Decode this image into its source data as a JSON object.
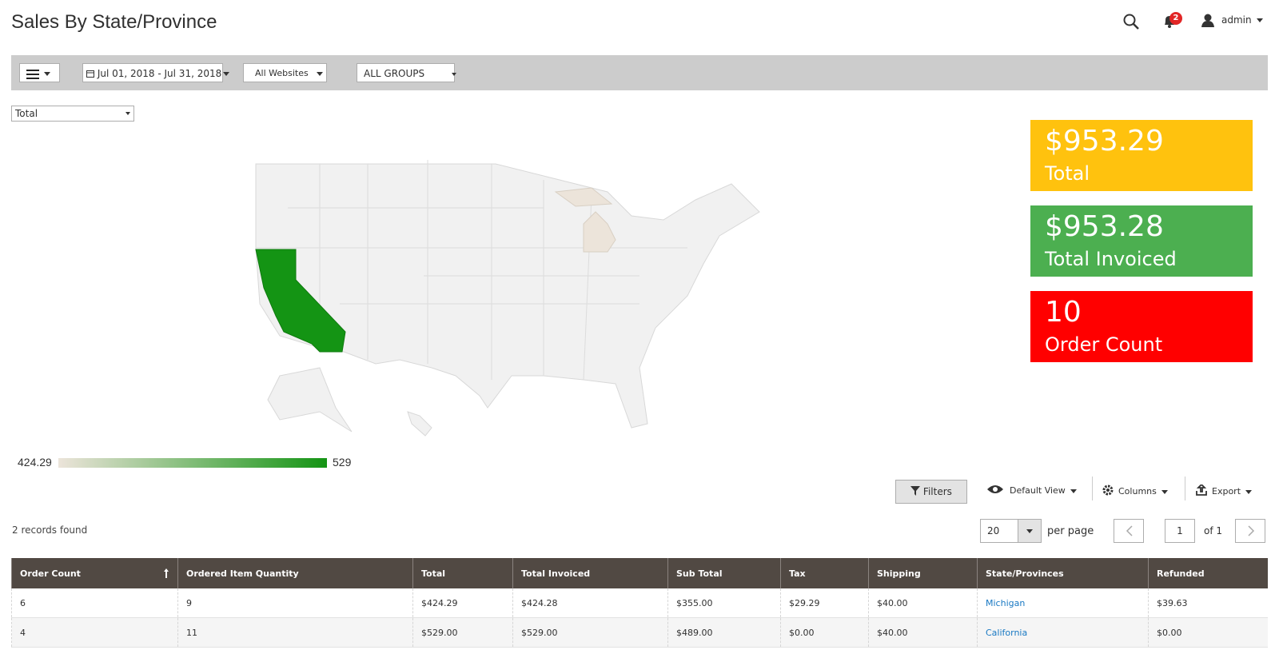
{
  "header": {
    "title": "Sales By State/Province",
    "notifications": "2",
    "user": "admin"
  },
  "toolbar": {
    "date_range": "Jul 01, 2018 - Jul 31, 2018",
    "website": "All Websites",
    "group": "ALL GROUPS"
  },
  "metric_select": "Total",
  "map_legend": {
    "min": "424.29",
    "max": "529"
  },
  "cards": [
    {
      "value": "$953.29",
      "label": "Total"
    },
    {
      "value": "$953.28",
      "label": "Total Invoiced"
    },
    {
      "value": "10",
      "label": "Order Count"
    }
  ],
  "grid_controls": {
    "filters": "Filters",
    "view": "Default View",
    "columns": "Columns",
    "export": "Export",
    "records": "2 records found",
    "page_size": "20",
    "per_page": "per page",
    "page": "1",
    "of": "of 1"
  },
  "table": {
    "columns": [
      "Order Count",
      "Ordered Item Quantity",
      "Total",
      "Total Invoiced",
      "Sub Total",
      "Tax",
      "Shipping",
      "State/Provinces",
      "Refunded"
    ],
    "rows": [
      [
        "6",
        "9",
        "$424.29",
        "$424.28",
        "$355.00",
        "$29.29",
        "$40.00",
        "Michigan",
        "$39.63"
      ],
      [
        "4",
        "11",
        "$529.00",
        "$529.00",
        "$489.00",
        "$0.00",
        "$40.00",
        "California",
        "$0.00"
      ]
    ]
  }
}
